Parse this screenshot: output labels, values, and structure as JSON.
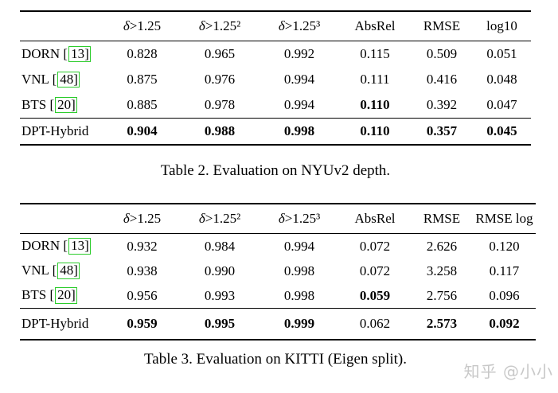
{
  "colors": {
    "background": "#ffffff",
    "text": "#000000",
    "citation_box": "#2bcc2b",
    "watermark": "#c8c8c8"
  },
  "citation": {
    "open": "[",
    "close": "]"
  },
  "watermark": {
    "text": "知乎 @小小"
  },
  "tables": [
    {
      "caption": "Table 2. Evaluation on NYUv2 depth.",
      "headers": [
        {
          "sym": "δ",
          "rest": ">1.25"
        },
        {
          "sym": "δ",
          "rest": ">1.25²"
        },
        {
          "sym": "δ",
          "rest": ">1.25³"
        },
        {
          "sym": "",
          "rest": "AbsRel"
        },
        {
          "sym": "",
          "rest": "RMSE"
        },
        {
          "sym": "",
          "rest": "log10"
        }
      ],
      "rows": [
        {
          "method": "DORN",
          "cite": "13",
          "values": [
            "0.828",
            "0.965",
            "0.992",
            "0.115",
            "0.509",
            "0.051"
          ],
          "bold": [
            false,
            false,
            false,
            false,
            false,
            false
          ]
        },
        {
          "method": "VNL",
          "cite": "48",
          "values": [
            "0.875",
            "0.976",
            "0.994",
            "0.111",
            "0.416",
            "0.048"
          ],
          "bold": [
            false,
            false,
            false,
            false,
            false,
            false
          ]
        },
        {
          "method": "BTS",
          "cite": "20",
          "values": [
            "0.885",
            "0.978",
            "0.994",
            "0.110",
            "0.392",
            "0.047"
          ],
          "bold": [
            false,
            false,
            false,
            true,
            false,
            false
          ]
        },
        {
          "method": "DPT-Hybrid",
          "cite": null,
          "values": [
            "0.904",
            "0.988",
            "0.998",
            "0.110",
            "0.357",
            "0.045"
          ],
          "bold": [
            true,
            true,
            true,
            true,
            true,
            true
          ]
        }
      ]
    },
    {
      "caption": "Table 3. Evaluation on KITTI (Eigen split).",
      "headers": [
        {
          "sym": "δ",
          "rest": ">1.25"
        },
        {
          "sym": "δ",
          "rest": ">1.25²"
        },
        {
          "sym": "δ",
          "rest": ">1.25³"
        },
        {
          "sym": "",
          "rest": "AbsRel"
        },
        {
          "sym": "",
          "rest": "RMSE"
        },
        {
          "sym": "",
          "rest": "RMSE log"
        }
      ],
      "rows": [
        {
          "method": "DORN",
          "cite": "13",
          "values": [
            "0.932",
            "0.984",
            "0.994",
            "0.072",
            "2.626",
            "0.120"
          ],
          "bold": [
            false,
            false,
            false,
            false,
            false,
            false
          ]
        },
        {
          "method": "VNL",
          "cite": "48",
          "values": [
            "0.938",
            "0.990",
            "0.998",
            "0.072",
            "3.258",
            "0.117"
          ],
          "bold": [
            false,
            false,
            false,
            false,
            false,
            false
          ]
        },
        {
          "method": "BTS",
          "cite": "20",
          "values": [
            "0.956",
            "0.993",
            "0.998",
            "0.059",
            "2.756",
            "0.096"
          ],
          "bold": [
            false,
            false,
            false,
            true,
            false,
            false
          ]
        },
        {
          "method": "DPT-Hybrid",
          "cite": null,
          "values": [
            "0.959",
            "0.995",
            "0.999",
            "0.062",
            "2.573",
            "0.092"
          ],
          "bold": [
            true,
            true,
            true,
            false,
            true,
            true
          ]
        }
      ]
    }
  ]
}
